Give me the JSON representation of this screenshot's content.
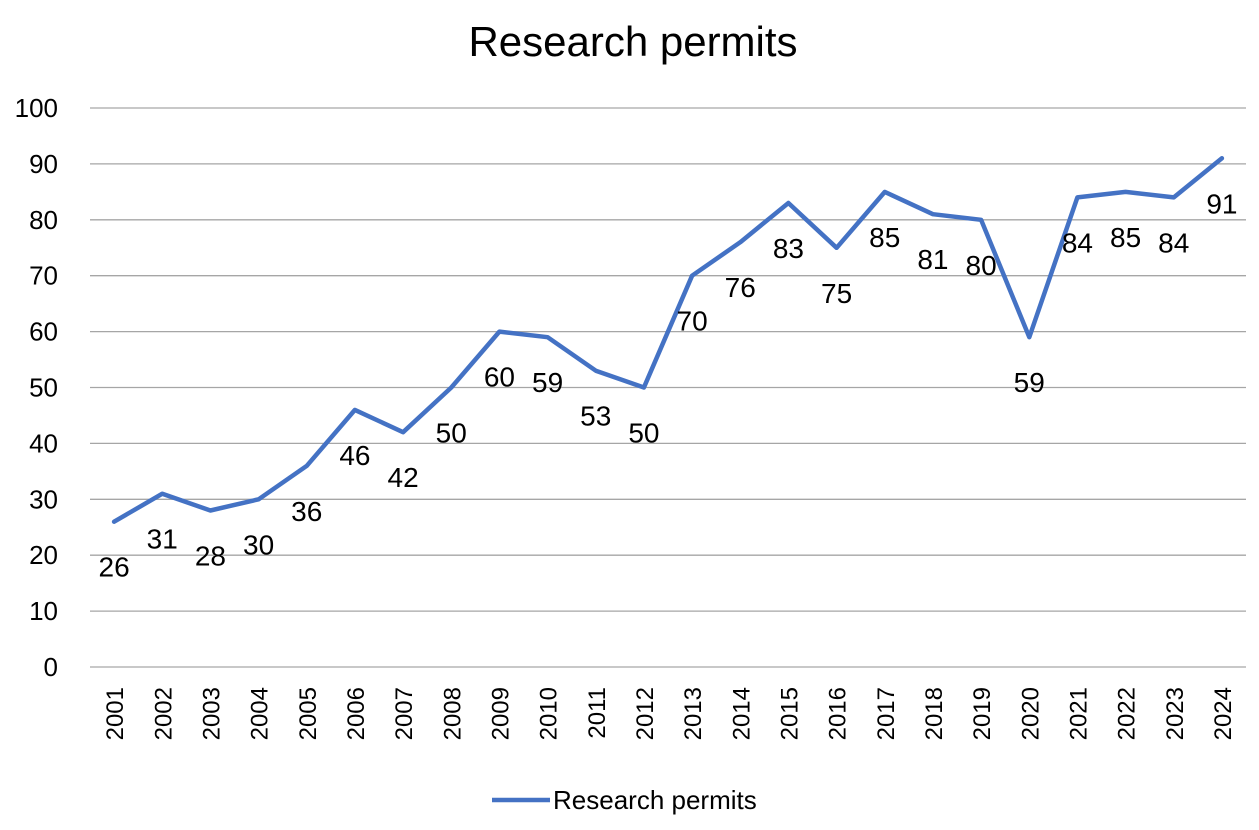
{
  "chart_data": {
    "type": "line",
    "title": "Research permits",
    "xlabel": "",
    "ylabel": "",
    "ylim": [
      0,
      100
    ],
    "yticks": [
      "0",
      "10",
      "20",
      "30",
      "40",
      "50",
      "60",
      "70",
      "80",
      "90",
      "100"
    ],
    "grid": true,
    "legend": "bottom",
    "categories": [
      "2001",
      "2002",
      "2003",
      "2004",
      "2005",
      "2006",
      "2007",
      "2008",
      "2009",
      "2010",
      "2011",
      "2012",
      "2013",
      "2014",
      "2015",
      "2016",
      "2017",
      "2018",
      "2019",
      "2020",
      "2021",
      "2022",
      "2023",
      "2024"
    ],
    "series": [
      {
        "name": "Research permits",
        "color": "#4472c4",
        "values": [
          26,
          31,
          28,
          30,
          36,
          46,
          42,
          50,
          60,
          59,
          53,
          50,
          70,
          76,
          83,
          75,
          85,
          81,
          80,
          59,
          84,
          85,
          84,
          91
        ]
      }
    ]
  }
}
